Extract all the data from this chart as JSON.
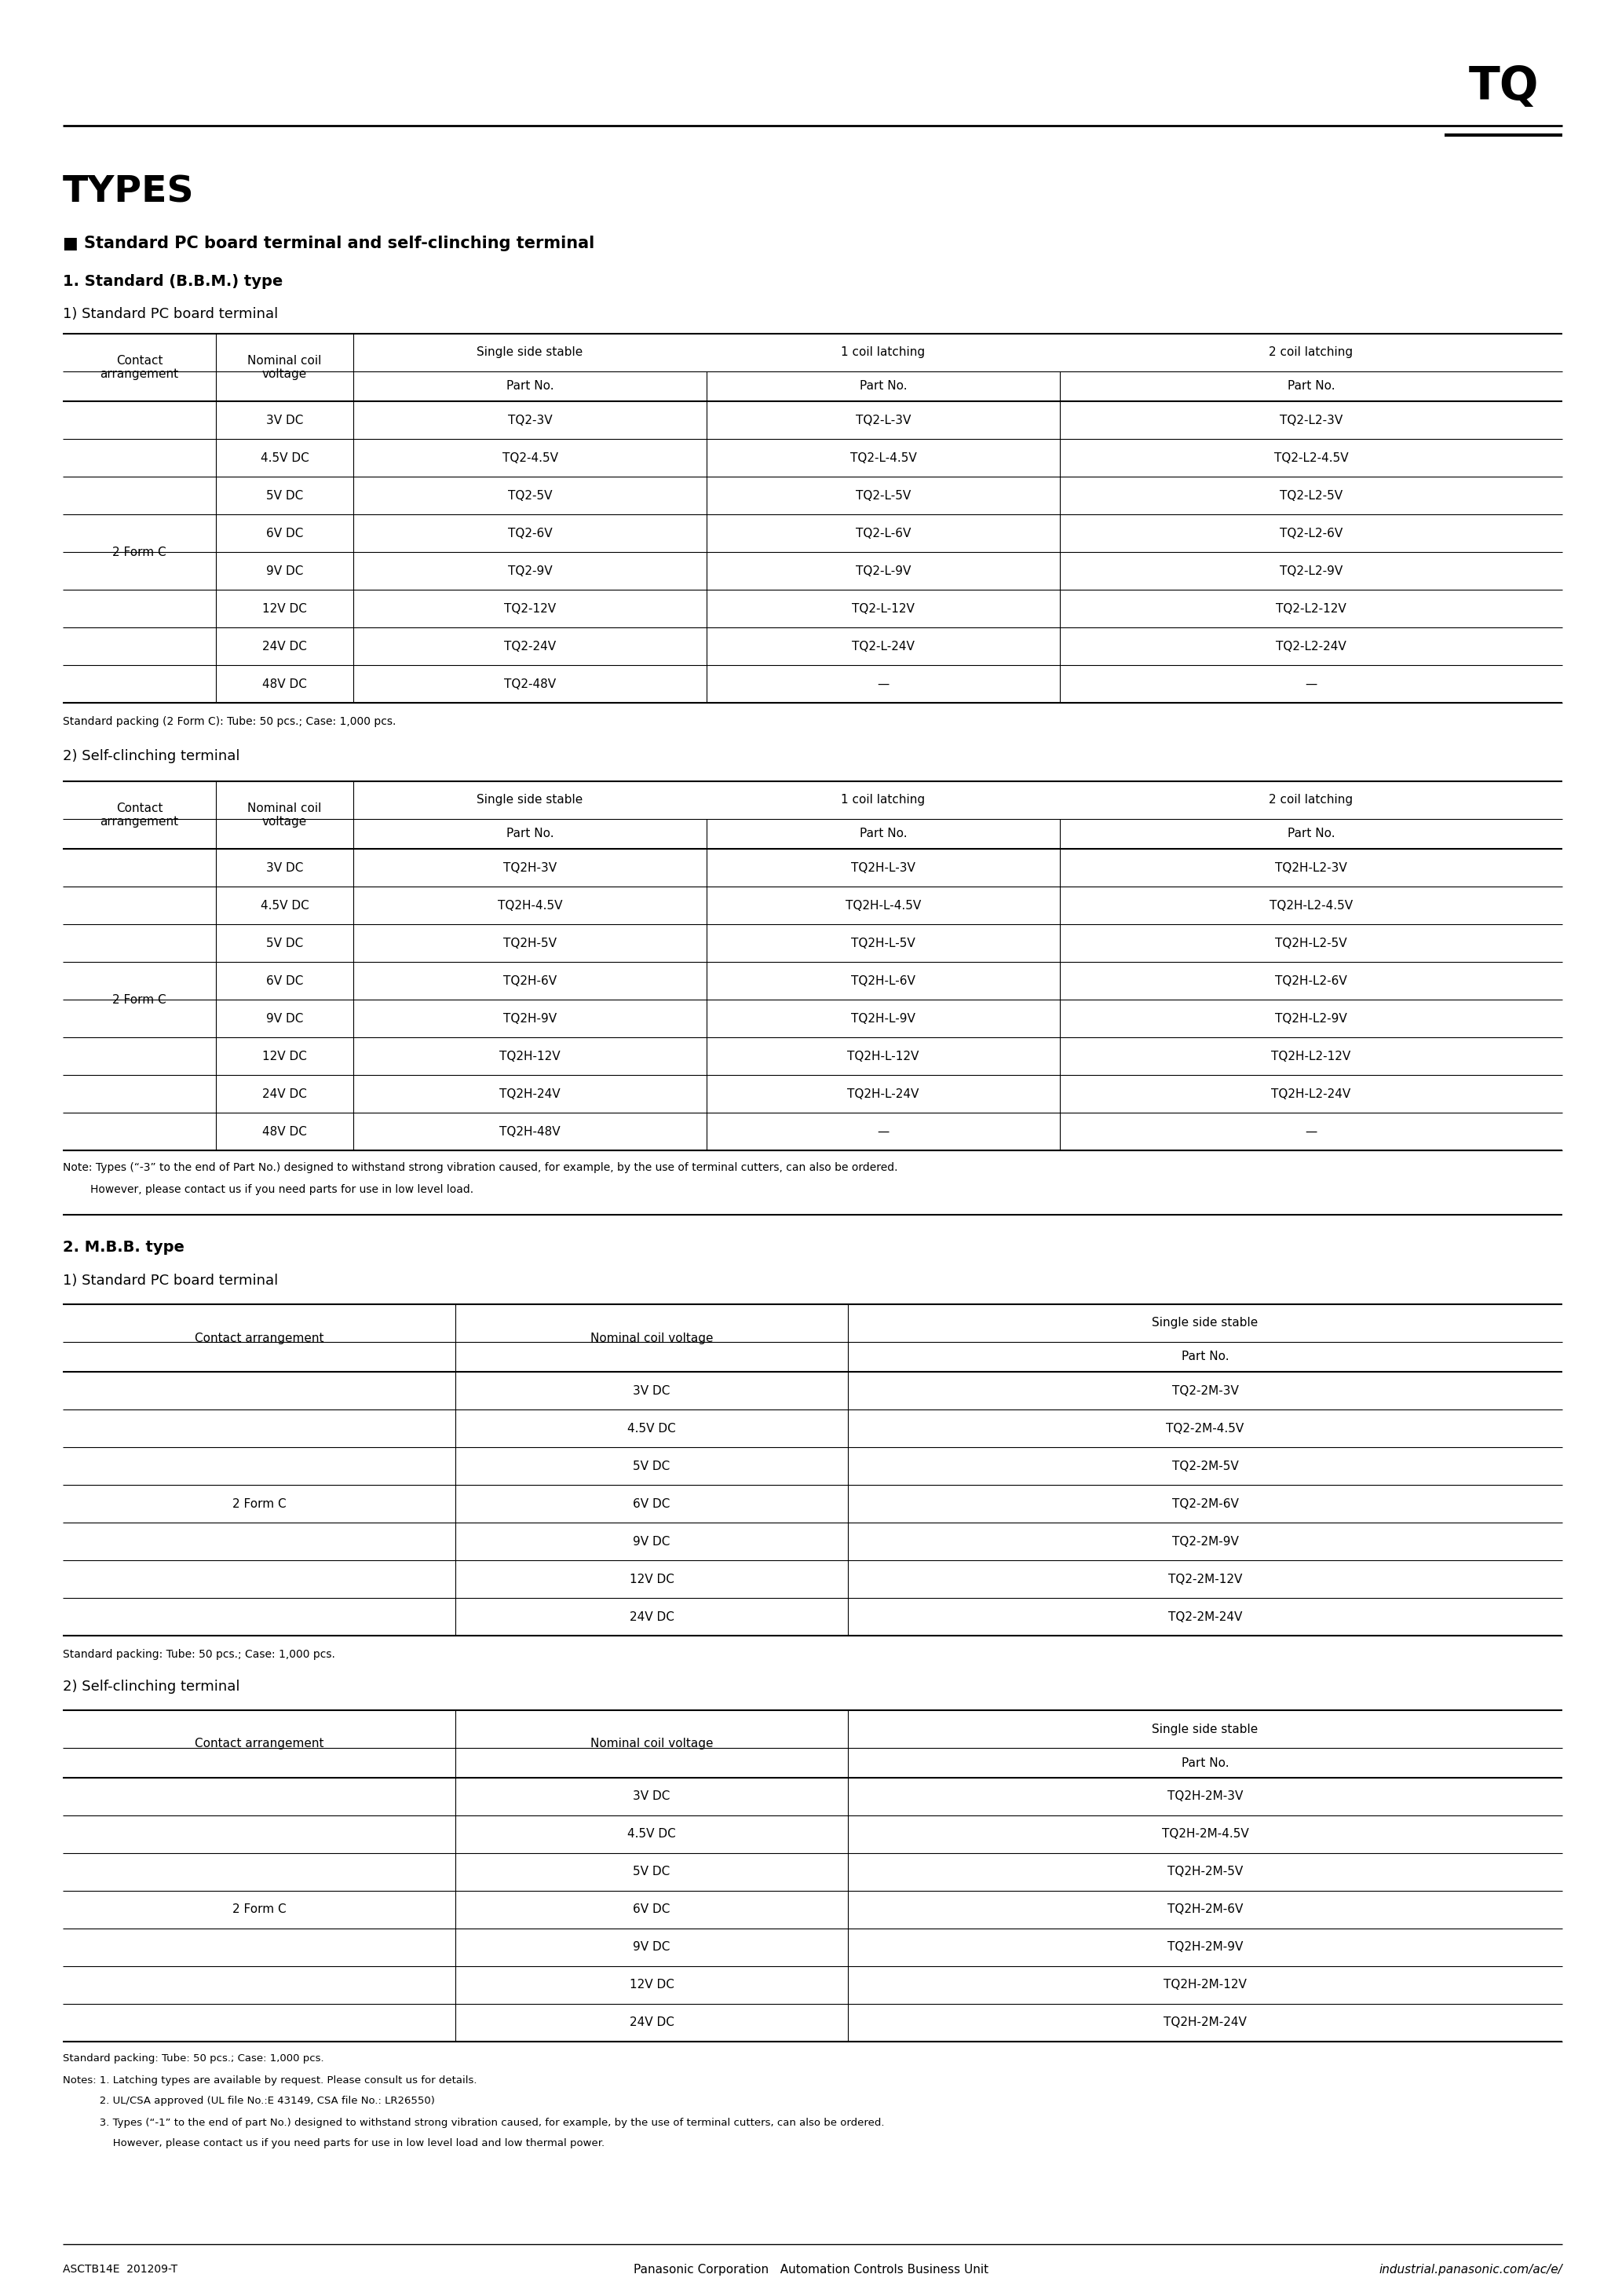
{
  "page_title": "TQ",
  "section_title": "TYPES",
  "subsection1_title": "■ Standard PC board terminal and self-clinching terminal",
  "subsection1_sub1": "1. Standard (B.B.M.) type",
  "subsection1_sub1a": "1) Standard PC board terminal",
  "table1_contact": "2 Form C",
  "table1_rows": [
    [
      "3V DC",
      "TQ2-3V",
      "TQ2-L-3V",
      "TQ2-L2-3V"
    ],
    [
      "4.5V DC",
      "TQ2-4.5V",
      "TQ2-L-4.5V",
      "TQ2-L2-4.5V"
    ],
    [
      "5V DC",
      "TQ2-5V",
      "TQ2-L-5V",
      "TQ2-L2-5V"
    ],
    [
      "6V DC",
      "TQ2-6V",
      "TQ2-L-6V",
      "TQ2-L2-6V"
    ],
    [
      "9V DC",
      "TQ2-9V",
      "TQ2-L-9V",
      "TQ2-L2-9V"
    ],
    [
      "12V DC",
      "TQ2-12V",
      "TQ2-L-12V",
      "TQ2-L2-12V"
    ],
    [
      "24V DC",
      "TQ2-24V",
      "TQ2-L-24V",
      "TQ2-L2-24V"
    ],
    [
      "48V DC",
      "TQ2-48V",
      "—",
      "—"
    ]
  ],
  "table1_note": "Standard packing (2 Form C): Tube: 50 pcs.; Case: 1,000 pcs.",
  "subsection1_sub2": "2) Self-clinching terminal",
  "table2_contact": "2 Form C",
  "table2_rows": [
    [
      "3V DC",
      "TQ2H-3V",
      "TQ2H-L-3V",
      "TQ2H-L2-3V"
    ],
    [
      "4.5V DC",
      "TQ2H-4.5V",
      "TQ2H-L-4.5V",
      "TQ2H-L2-4.5V"
    ],
    [
      "5V DC",
      "TQ2H-5V",
      "TQ2H-L-5V",
      "TQ2H-L2-5V"
    ],
    [
      "6V DC",
      "TQ2H-6V",
      "TQ2H-L-6V",
      "TQ2H-L2-6V"
    ],
    [
      "9V DC",
      "TQ2H-9V",
      "TQ2H-L-9V",
      "TQ2H-L2-9V"
    ],
    [
      "12V DC",
      "TQ2H-12V",
      "TQ2H-L-12V",
      "TQ2H-L2-12V"
    ],
    [
      "24V DC",
      "TQ2H-24V",
      "TQ2H-L-24V",
      "TQ2H-L2-24V"
    ],
    [
      "48V DC",
      "TQ2H-48V",
      "—",
      "—"
    ]
  ],
  "table2_note_line1": "Note: Types (“-3” to the end of Part No.) designed to withstand strong vibration caused, for example, by the use of terminal cutters, can also be ordered.",
  "table2_note_line2": "        However, please contact us if you need parts for use in low level load.",
  "subsection2_title": "2. M.B.B. type",
  "subsection2_sub1": "1) Standard PC board terminal",
  "table3_contact": "2 Form C",
  "table3_rows": [
    [
      "3V DC",
      "TQ2-2M-3V"
    ],
    [
      "4.5V DC",
      "TQ2-2M-4.5V"
    ],
    [
      "5V DC",
      "TQ2-2M-5V"
    ],
    [
      "6V DC",
      "TQ2-2M-6V"
    ],
    [
      "9V DC",
      "TQ2-2M-9V"
    ],
    [
      "12V DC",
      "TQ2-2M-12V"
    ],
    [
      "24V DC",
      "TQ2-2M-24V"
    ]
  ],
  "table3_note": "Standard packing: Tube: 50 pcs.; Case: 1,000 pcs.",
  "subsection2_sub2": "2) Self-clinching terminal",
  "table4_contact": "2 Form C",
  "table4_rows": [
    [
      "3V DC",
      "TQ2H-2M-3V"
    ],
    [
      "4.5V DC",
      "TQ2H-2M-4.5V"
    ],
    [
      "5V DC",
      "TQ2H-2M-5V"
    ],
    [
      "6V DC",
      "TQ2H-2M-6V"
    ],
    [
      "9V DC",
      "TQ2H-2M-9V"
    ],
    [
      "12V DC",
      "TQ2H-2M-12V"
    ],
    [
      "24V DC",
      "TQ2H-2M-24V"
    ]
  ],
  "table4_note_lines": [
    "Standard packing: Tube: 50 pcs.; Case: 1,000 pcs.",
    "Notes: 1. Latching types are available by request. Please consult us for details.",
    "           2. UL/CSA approved (UL file No.:E 43149, CSA file No.: LR26550)",
    "           3. Types (“-1” to the end of part No.) designed to withstand strong vibration caused, for example, by the use of terminal cutters, can also be ordered.",
    "               However, please contact us if you need parts for use in low level load and low thermal power."
  ],
  "footer_left": "ASCTB14E  201209-T",
  "footer_center": "Panasonic Corporation   Automation Controls Business Unit",
  "footer_right": "industrial.panasonic.com/ac/e/"
}
